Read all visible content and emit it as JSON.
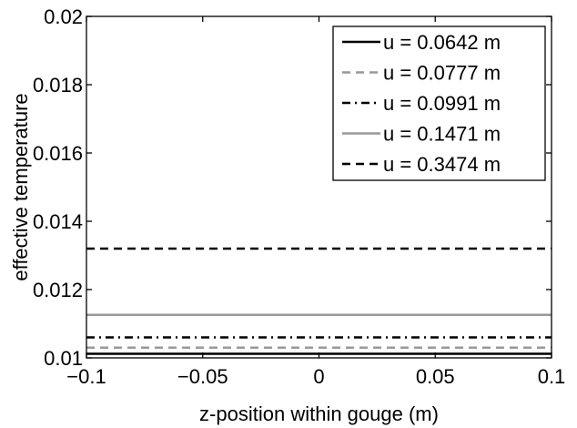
{
  "chart_data": {
    "type": "line",
    "title": "",
    "xlabel": "z-position within gouge (m)",
    "ylabel": "effective temperature",
    "xlim": [
      -0.1,
      0.1
    ],
    "ylim": [
      0.01,
      0.02
    ],
    "xticks": [
      -0.1,
      -0.05,
      0,
      0.05,
      0.1
    ],
    "xtick_labels": [
      "−0.1",
      "−0.05",
      "0",
      "0.05",
      "0.1"
    ],
    "yticks": [
      0.01,
      0.012,
      0.014,
      0.016,
      0.018,
      0.02
    ],
    "ytick_labels": [
      "0.01",
      "0.012",
      "0.014",
      "0.016",
      "0.018",
      "0.02"
    ],
    "grid": false,
    "legend_position": "top-right",
    "series": [
      {
        "name": "u = 0.0642 m",
        "x": [
          -0.1,
          0.1
        ],
        "y": [
          0.01012,
          0.01012
        ],
        "color": "#000000",
        "dash": "solid"
      },
      {
        "name": "u = 0.0777 m",
        "x": [
          -0.1,
          0.1
        ],
        "y": [
          0.0103,
          0.0103
        ],
        "color": "#999999",
        "dash": "dashed"
      },
      {
        "name": "u = 0.0991 m",
        "x": [
          -0.1,
          0.1
        ],
        "y": [
          0.0106,
          0.0106
        ],
        "color": "#000000",
        "dash": "dashdot"
      },
      {
        "name": "u = 0.1471 m",
        "x": [
          -0.1,
          0.1
        ],
        "y": [
          0.01126,
          0.01126
        ],
        "color": "#999999",
        "dash": "solid"
      },
      {
        "name": "u = 0.3474 m",
        "x": [
          -0.1,
          0.1
        ],
        "y": [
          0.0132,
          0.0132
        ],
        "color": "#000000",
        "dash": "dashed"
      }
    ]
  }
}
